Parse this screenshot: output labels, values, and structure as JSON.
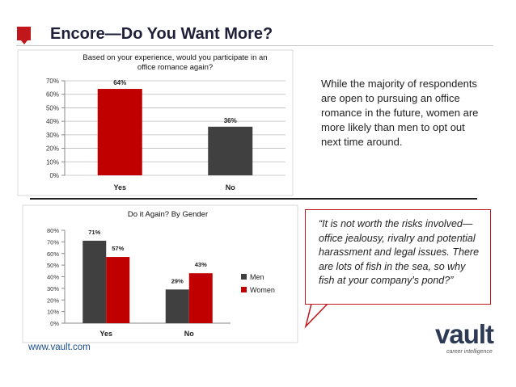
{
  "header": {
    "title": "Encore—Do You Want More?"
  },
  "description": "While the majority of respondents are open to pursuing an office romance in the future, women are more likely than men to opt out next time around.",
  "quote": "“It is not worth the risks involved—office jealousy, rivalry and potential harassment and legal issues. There are lots of fish in the sea, so why fish at your company's pond?”",
  "footer": {
    "url": "www.vault.com"
  },
  "logo": {
    "word": "vault",
    "tagline": "career intelligence"
  },
  "colors": {
    "accent": "#c0161c",
    "men": "#404040",
    "women": "#c00000"
  },
  "chart_data": [
    {
      "type": "bar",
      "title_lines": [
        "Based on your experience, would you participate in an",
        "office romance again?"
      ],
      "categories": [
        "Yes",
        "No"
      ],
      "values": [
        64,
        36
      ],
      "data_labels": [
        "64%",
        "36%"
      ],
      "bar_colors": [
        "#c00000",
        "#404040"
      ],
      "ylim": [
        0,
        70
      ],
      "yticks": [
        "0%",
        "10%",
        "20%",
        "30%",
        "40%",
        "50%",
        "60%",
        "70%"
      ],
      "grid": true
    },
    {
      "type": "bar",
      "title": "Do it Again? By Gender",
      "categories": [
        "Yes",
        "No"
      ],
      "series": [
        {
          "name": "Men",
          "values": [
            71,
            29
          ],
          "data_labels": [
            "71%",
            "29%"
          ],
          "color": "#404040"
        },
        {
          "name": "Women",
          "values": [
            57,
            43
          ],
          "data_labels": [
            "57%",
            "43%"
          ],
          "color": "#c00000"
        }
      ],
      "ylim": [
        0,
        80
      ],
      "yticks": [
        "0%",
        "10%",
        "20%",
        "30%",
        "40%",
        "50%",
        "60%",
        "70%",
        "80%"
      ],
      "grid": false,
      "legend": "right"
    }
  ]
}
